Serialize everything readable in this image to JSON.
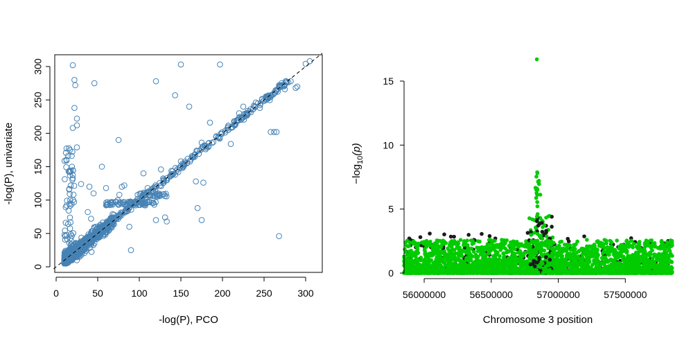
{
  "chart_data": [
    {
      "type": "scatter",
      "title": "",
      "xlabel": "-log(P), PCO",
      "ylabel": "-log(P), univariate",
      "xlim": [
        0,
        310
      ],
      "ylim": [
        0,
        310
      ],
      "xticks": [
        "0",
        "50",
        "100",
        "150",
        "200",
        "250",
        "300"
      ],
      "yticks": [
        "0",
        "50",
        "100",
        "150",
        "200",
        "250",
        "300"
      ],
      "marker": "open-circle",
      "point_color": "#4682B4",
      "reference_line": {
        "style": "dashed",
        "slope": 1,
        "intercept": 0,
        "color": "#000000"
      },
      "grid": false,
      "points_x": [
        20,
        22,
        23,
        46,
        25,
        25,
        20,
        22,
        25,
        150,
        197,
        120,
        75,
        55,
        143,
        262,
        268,
        17,
        38,
        42,
        45,
        48,
        76,
        79,
        82,
        88,
        90,
        80,
        160,
        210,
        245,
        255,
        258,
        265,
        168,
        177,
        120,
        131,
        133,
        170,
        175,
        220,
        175,
        98,
        107,
        110,
        125,
        195,
        268,
        19,
        15,
        85,
        74,
        40,
        185,
        150,
        126,
        140,
        105,
        60,
        30,
        240,
        300,
        305,
        282,
        290,
        288,
        275,
        215,
        225,
        230
      ],
      "points_y": [
        302,
        280,
        272,
        275,
        212,
        222,
        208,
        238,
        179,
        303,
        303,
        278,
        190,
        150,
        257,
        202,
        46,
        100,
        82,
        72,
        110,
        60,
        108,
        120,
        122,
        60,
        25,
        96,
        240,
        184,
        238,
        256,
        202,
        202,
        128,
        126,
        70,
        74,
        68,
        88,
        70,
        230,
        186,
        108,
        110,
        118,
        122,
        195,
        272,
        150,
        143,
        92,
        100,
        120,
        216,
        158,
        146,
        143,
        140,
        118,
        124,
        246,
        304,
        308,
        278,
        270,
        268,
        266,
        212,
        240,
        228
      ]
    },
    {
      "type": "scatter",
      "title": "",
      "xlabel": "Chromosome 3 position",
      "ylabel": "−log10(p)",
      "ylabel_base": "−log",
      "ylabel_sub": "10",
      "ylabel_arg": "(p)",
      "xlim": [
        55850000,
        57850000
      ],
      "ylim": [
        0,
        16.8
      ],
      "xticks": [
        "56000000",
        "56500000",
        "57000000",
        "57500000"
      ],
      "yticks": [
        "0",
        "5",
        "10",
        "15"
      ],
      "marker": "filled-circle",
      "series": [
        {
          "color": "#00CC00"
        },
        {
          "color": "#1A1A1A"
        }
      ],
      "grid": false,
      "peak": {
        "x": 56840000,
        "y": 16.7
      }
    }
  ]
}
